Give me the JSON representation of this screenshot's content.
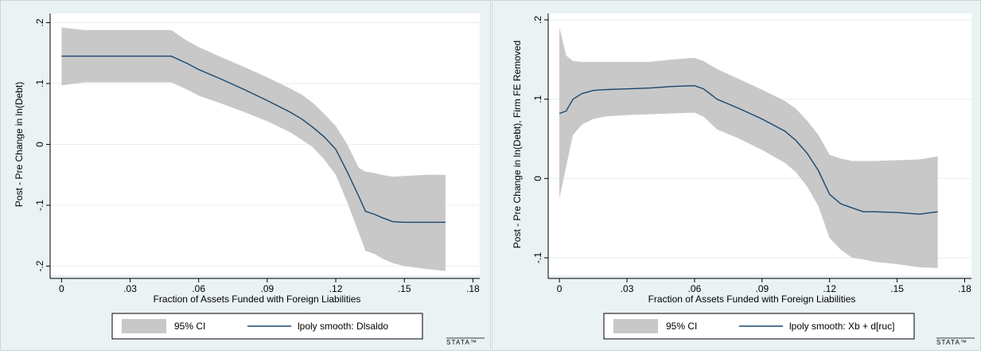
{
  "chart_data": [
    {
      "type": "line",
      "xlabel": "Fraction of Assets Funded with Foreign Liabilities",
      "ylabel": "Post - Pre Change in ln(Debt)",
      "xlim": [
        -0.005,
        0.183
      ],
      "ylim": [
        -0.215,
        0.215
      ],
      "x_ticks": [
        0,
        0.03,
        0.06,
        0.09,
        0.12,
        0.15,
        0.18
      ],
      "x_tick_labels": [
        "0",
        ".03",
        ".06",
        ".09",
        ".12",
        ".15",
        ".18"
      ],
      "y_ticks": [
        -0.2,
        -0.1,
        0,
        0.1,
        0.2
      ],
      "y_tick_labels": [
        "-.2",
        "-.1",
        "0",
        ".1",
        ".2"
      ],
      "grid": true,
      "legend_position": "bottom",
      "legend": [
        "95% CI",
        "lpoly smooth: Dlsaldo"
      ],
      "watermark": "STATA™",
      "series": [
        {
          "name": "lpoly smooth: Dlsaldo",
          "x": [
            0,
            0.01,
            0.02,
            0.03,
            0.04,
            0.048,
            0.055,
            0.06,
            0.07,
            0.08,
            0.09,
            0.1,
            0.105,
            0.11,
            0.115,
            0.12,
            0.125,
            0.13,
            0.133,
            0.137,
            0.14,
            0.145,
            0.15,
            0.16,
            0.168
          ],
          "y": [
            0.145,
            0.145,
            0.145,
            0.145,
            0.145,
            0.145,
            0.133,
            0.123,
            0.107,
            0.09,
            0.072,
            0.053,
            0.042,
            0.028,
            0.012,
            -0.008,
            -0.045,
            -0.085,
            -0.11,
            -0.115,
            -0.12,
            -0.127,
            -0.128,
            -0.128,
            -0.128
          ]
        },
        {
          "name": "95% CI",
          "x": [
            0,
            0.01,
            0.02,
            0.03,
            0.04,
            0.048,
            0.055,
            0.06,
            0.07,
            0.08,
            0.09,
            0.1,
            0.105,
            0.11,
            0.115,
            0.12,
            0.125,
            0.13,
            0.133,
            0.137,
            0.14,
            0.145,
            0.15,
            0.16,
            0.168
          ],
          "upper": [
            0.192,
            0.188,
            0.188,
            0.188,
            0.188,
            0.188,
            0.17,
            0.16,
            0.143,
            0.127,
            0.11,
            0.092,
            0.082,
            0.068,
            0.05,
            0.03,
            0.0,
            -0.038,
            -0.045,
            -0.047,
            -0.05,
            -0.053,
            -0.052,
            -0.05,
            -0.05
          ],
          "lower": [
            0.097,
            0.102,
            0.102,
            0.102,
            0.102,
            0.102,
            0.09,
            0.08,
            0.067,
            0.053,
            0.038,
            0.02,
            0.008,
            -0.005,
            -0.025,
            -0.05,
            -0.095,
            -0.145,
            -0.175,
            -0.18,
            -0.187,
            -0.195,
            -0.2,
            -0.205,
            -0.208
          ]
        }
      ]
    },
    {
      "type": "line",
      "xlabel": "Fraction of Assets Funded with Foreign Liabilities",
      "ylabel": "Post - Pre Change in ln(Debt), Firm FE Removed",
      "xlim": [
        -0.005,
        0.183
      ],
      "ylim": [
        -0.122,
        0.208
      ],
      "x_ticks": [
        0,
        0.03,
        0.06,
        0.09,
        0.12,
        0.15,
        0.18
      ],
      "x_tick_labels": [
        "0",
        ".03",
        ".06",
        ".09",
        ".12",
        ".15",
        ".18"
      ],
      "y_ticks": [
        -0.1,
        0,
        0.1,
        0.2
      ],
      "y_tick_labels": [
        "-.1",
        "0",
        ".1",
        ".2"
      ],
      "grid": true,
      "legend_position": "bottom",
      "legend": [
        "95% CI",
        "lpoly smooth: Xb + d[ruc]"
      ],
      "watermark": "STATA™",
      "series": [
        {
          "name": "lpoly smooth: Xb + d[ruc]",
          "x": [
            0,
            0.003,
            0.006,
            0.01,
            0.015,
            0.02,
            0.03,
            0.04,
            0.05,
            0.06,
            0.064,
            0.07,
            0.08,
            0.09,
            0.1,
            0.105,
            0.11,
            0.115,
            0.12,
            0.125,
            0.13,
            0.135,
            0.14,
            0.15,
            0.16,
            0.168
          ],
          "y": [
            0.082,
            0.085,
            0.1,
            0.107,
            0.111,
            0.112,
            0.113,
            0.114,
            0.116,
            0.117,
            0.113,
            0.1,
            0.088,
            0.075,
            0.06,
            0.048,
            0.032,
            0.01,
            -0.02,
            -0.032,
            -0.037,
            -0.042,
            -0.042,
            -0.043,
            -0.045,
            -0.042
          ]
        },
        {
          "name": "95% CI",
          "x": [
            0,
            0.003,
            0.006,
            0.01,
            0.015,
            0.02,
            0.03,
            0.04,
            0.05,
            0.06,
            0.064,
            0.07,
            0.08,
            0.09,
            0.1,
            0.105,
            0.11,
            0.115,
            0.12,
            0.125,
            0.13,
            0.135,
            0.14,
            0.15,
            0.16,
            0.168
          ],
          "upper": [
            0.19,
            0.155,
            0.148,
            0.147,
            0.147,
            0.147,
            0.147,
            0.147,
            0.15,
            0.152,
            0.148,
            0.138,
            0.125,
            0.112,
            0.098,
            0.088,
            0.073,
            0.055,
            0.03,
            0.025,
            0.022,
            0.022,
            0.022,
            0.023,
            0.024,
            0.028
          ],
          "lower": [
            -0.025,
            0.015,
            0.055,
            0.068,
            0.075,
            0.078,
            0.08,
            0.081,
            0.082,
            0.083,
            0.078,
            0.062,
            0.05,
            0.036,
            0.02,
            0.008,
            -0.01,
            -0.035,
            -0.075,
            -0.09,
            -0.1,
            -0.102,
            -0.105,
            -0.108,
            -0.112,
            -0.113
          ]
        }
      ]
    }
  ]
}
